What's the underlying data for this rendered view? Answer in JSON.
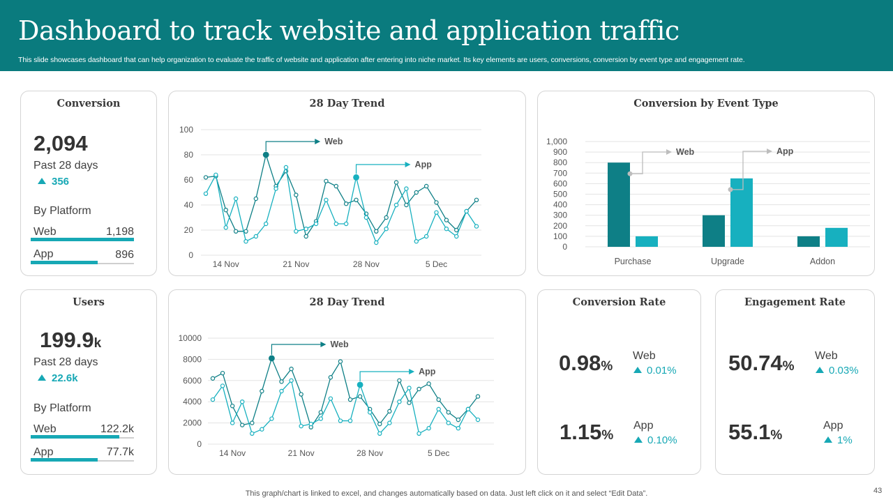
{
  "header": {
    "title": "Dashboard to track website and application traffic",
    "subtitle": "This slide showcases dashboard that can help organization to evaluate the traffic of website and application after entering into niche market. Its key elements are users, conversions, conversion by event type and engagement rate."
  },
  "conversion": {
    "title": "Conversion",
    "value": "2,094",
    "period": "Past 28 days",
    "delta": "356",
    "by_platform": "By Platform",
    "web_label": "Web",
    "web_value": "1,198",
    "app_label": "App",
    "app_value": "896",
    "web_fill": 1.0,
    "app_fill": 0.65
  },
  "users": {
    "title": "Users",
    "value": "199.9",
    "value_unit": "k",
    "period": "Past 28 days",
    "delta": "22.6k",
    "by_platform": "By Platform",
    "web_label": "Web",
    "web_value": "122.2k",
    "app_label": "App",
    "app_value": "77.7k",
    "web_fill": 0.86,
    "app_fill": 0.65
  },
  "conversion_rate": {
    "title": "Conversion Rate",
    "web_value": "0.98",
    "web_unit": "%",
    "web_label": "Web",
    "web_delta": "0.01%",
    "app_value": "1.15",
    "app_unit": "%",
    "app_label": "App",
    "app_delta": "0.10%"
  },
  "engagement_rate": {
    "title": "Engagement Rate",
    "web_value": "50.74",
    "web_unit": "%",
    "web_label": "Web",
    "web_delta": "0.03%",
    "app_value": "55.1",
    "app_unit": "%",
    "app_label": "App",
    "app_delta": "1%"
  },
  "footer": {
    "note": "This graph/chart is linked to excel,  and changes automatically based on data. Just left click on it and select “Edit Data”.",
    "page": "43"
  },
  "colors": {
    "accent": "#0a7b7e",
    "teal_dark": "#0e7f86",
    "teal_light": "#17b0bf",
    "highlight": "#17a8b5"
  },
  "chart_data": [
    {
      "id": "conv_trend",
      "type": "line",
      "title": "28 Day Trend",
      "ylim": [
        0,
        100
      ],
      "yticks": [
        0,
        20,
        40,
        60,
        80,
        100
      ],
      "xtick_labels": [
        {
          "index": 2,
          "label": "14 Nov"
        },
        {
          "index": 9,
          "label": "21 Nov"
        },
        {
          "index": 16,
          "label": "28 Nov"
        },
        {
          "index": 23,
          "label": "5 Dec"
        }
      ],
      "series": [
        {
          "name": "Web",
          "color": "#0e7f86",
          "highlight_index": 6,
          "values": [
            62,
            63,
            36,
            19,
            19,
            45,
            80,
            55,
            67,
            48,
            15,
            27,
            59,
            55,
            41,
            44,
            33,
            19,
            30,
            58,
            40,
            50,
            55,
            42,
            28,
            20,
            35,
            44
          ]
        },
        {
          "name": "App",
          "color": "#17b0bf",
          "highlight_index": 15,
          "values": [
            49,
            64,
            22,
            45,
            11,
            15,
            25,
            53,
            70,
            19,
            21,
            25,
            44,
            25,
            25,
            62,
            30,
            10,
            21,
            40,
            53,
            11,
            15,
            34,
            21,
            15,
            35,
            23
          ]
        }
      ]
    },
    {
      "id": "event_type",
      "type": "bar",
      "title": "Conversion by Event Type",
      "categories": [
        "Purchase",
        "Upgrade",
        "Addon"
      ],
      "ylim": [
        0,
        1000
      ],
      "yticks": [
        0,
        100,
        200,
        300,
        400,
        500,
        600,
        700,
        800,
        900,
        1000
      ],
      "ytick_labels": [
        "0",
        "100",
        "200",
        "300",
        "400",
        "500",
        "600",
        "700",
        "800",
        "900",
        "1,000"
      ],
      "series": [
        {
          "name": "Web",
          "color": "#0e7f86",
          "values": [
            800,
            300,
            100
          ]
        },
        {
          "name": "App",
          "color": "#17b0bf",
          "values": [
            100,
            650,
            180
          ]
        }
      ]
    },
    {
      "id": "users_trend",
      "type": "line",
      "title": "28 Day Trend",
      "ylim": [
        0,
        10000
      ],
      "yticks": [
        0,
        2000,
        4000,
        6000,
        8000,
        10000
      ],
      "xtick_labels": [
        {
          "index": 2,
          "label": "14 Nov"
        },
        {
          "index": 9,
          "label": "21 Nov"
        },
        {
          "index": 16,
          "label": "28 Nov"
        },
        {
          "index": 23,
          "label": "5 Dec"
        }
      ],
      "series": [
        {
          "name": "Web",
          "color": "#0e7f86",
          "highlight_index": 6,
          "values": [
            6200,
            6700,
            3600,
            1800,
            2000,
            5000,
            8100,
            5900,
            7100,
            4700,
            1600,
            3000,
            6300,
            7800,
            4200,
            4500,
            3300,
            1900,
            3100,
            6000,
            3900,
            5200,
            5700,
            4200,
            3000,
            2300,
            3300,
            4500
          ]
        },
        {
          "name": "App",
          "color": "#17b0bf",
          "highlight_index": 15,
          "values": [
            4200,
            5500,
            2000,
            4000,
            1000,
            1400,
            2400,
            5000,
            6000,
            1700,
            1900,
            2400,
            4300,
            2200,
            2200,
            5600,
            3000,
            1000,
            2000,
            4000,
            5300,
            1000,
            1500,
            3300,
            2000,
            1500,
            3300,
            2300
          ]
        }
      ]
    }
  ]
}
